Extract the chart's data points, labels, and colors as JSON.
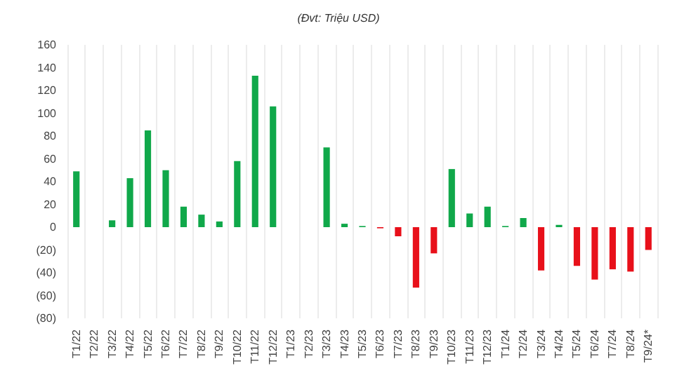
{
  "chart_data": {
    "type": "bar",
    "subtitle": "(Đvt: Triệu USD)",
    "categories": [
      "T1/22",
      "T2/22",
      "T3/22",
      "T4/22",
      "T5/22",
      "T6/22",
      "T7/22",
      "T8/22",
      "T9/22",
      "T10/22",
      "T11/22",
      "T12/22",
      "T1/23",
      "T2/23",
      "T3/23",
      "T4/23",
      "T5/23",
      "T6/23",
      "T7/23",
      "T8/23",
      "T9/23",
      "T10/23",
      "T11/23",
      "T12/23",
      "T1/24",
      "T2/24",
      "T3/24",
      "T4/24",
      "T5/24",
      "T6/24",
      "T7/24",
      "T8/24",
      "T9/24*"
    ],
    "values": [
      49,
      0,
      6,
      43,
      85,
      50,
      18,
      11,
      5,
      58,
      133,
      106,
      0,
      0,
      70,
      3,
      1,
      -1,
      -8,
      -53,
      -23,
      51,
      12,
      18,
      1,
      8,
      -38,
      2,
      -34,
      -46,
      -37,
      -39,
      -20
    ],
    "colors": [
      "#10a84a",
      "#10a84a",
      "#10a84a",
      "#10a84a",
      "#10a84a",
      "#10a84a",
      "#10a84a",
      "#10a84a",
      "#10a84a",
      "#10a84a",
      "#10a84a",
      "#10a84a",
      "#10a84a",
      "#10a84a",
      "#10a84a",
      "#10a84a",
      "#10a84a",
      "#e8101a",
      "#e8101a",
      "#e8101a",
      "#e8101a",
      "#10a84a",
      "#10a84a",
      "#10a84a",
      "#10a84a",
      "#10a84a",
      "#e8101a",
      "#10a84a",
      "#e8101a",
      "#e8101a",
      "#e8101a",
      "#e8101a",
      "#e8101a"
    ],
    "ylim": [
      -80,
      160
    ],
    "yticks": [
      {
        "value": -80,
        "label": "(80)"
      },
      {
        "value": -60,
        "label": "(60)"
      },
      {
        "value": -40,
        "label": "(40)"
      },
      {
        "value": -20,
        "label": "(20)"
      },
      0,
      20,
      40,
      60,
      80,
      100,
      120,
      140,
      160
    ],
    "grid": "x"
  }
}
